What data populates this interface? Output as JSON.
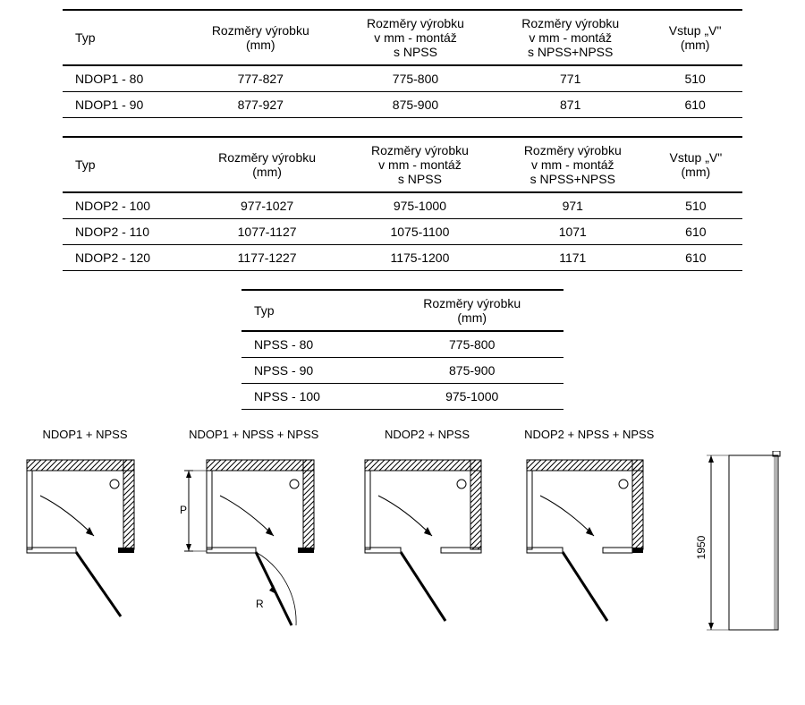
{
  "table1": {
    "headers": [
      "Typ",
      "Rozměry výrobku\n(mm)",
      "Rozměry výrobku\nv mm - montáž\ns NPSS",
      "Rozměry výrobku\nv mm - montáž\ns NPSS+NPSS",
      "Vstup „V\"\n(mm)"
    ],
    "rows": [
      [
        "NDOP1 - 80",
        "777-827",
        "775-800",
        "771",
        "510"
      ],
      [
        "NDOP1 - 90",
        "877-927",
        "875-900",
        "871",
        "610"
      ]
    ]
  },
  "table2": {
    "headers": [
      "Typ",
      "Rozměry výrobku\n(mm)",
      "Rozměry výrobku\nv mm - montáž\ns NPSS",
      "Rozměry výrobku\nv mm - montáž\ns NPSS+NPSS",
      "Vstup „V\"\n(mm)"
    ],
    "rows": [
      [
        "NDOP2 - 100",
        "977-1027",
        "975-1000",
        "971",
        "510"
      ],
      [
        "NDOP2 - 110",
        "1077-1127",
        "1075-1100",
        "1071",
        "610"
      ],
      [
        "NDOP2 - 120",
        "1177-1227",
        "1175-1200",
        "1171",
        "610"
      ]
    ]
  },
  "table3": {
    "headers": [
      "Typ",
      "Rozměry výrobku\n(mm)"
    ],
    "rows": [
      [
        "NPSS - 80",
        "775-800"
      ],
      [
        "NPSS - 90",
        "875-900"
      ],
      [
        "NPSS - 100",
        "975-1000"
      ]
    ]
  },
  "diagrams": {
    "labels": [
      "NDOP1 + NPSS",
      "NDOP1 + NPSS + NPSS",
      "NDOP2 + NPSS",
      "NDOP2 + NPSS + NPSS"
    ],
    "side_height": "1950",
    "dim_p": "P",
    "dim_r": "R"
  },
  "style": {
    "stroke": "#000000",
    "hatch": "#000000",
    "text": "#000000"
  }
}
